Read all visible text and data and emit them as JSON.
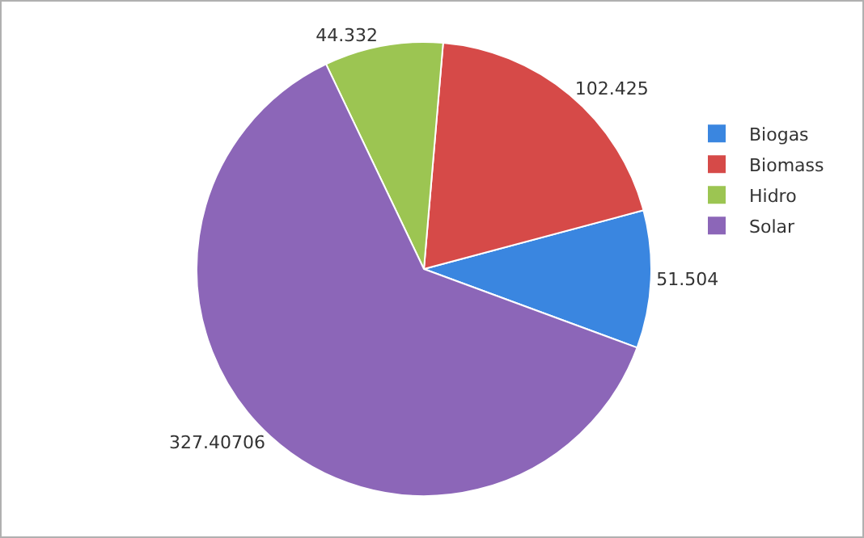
{
  "chart_data": {
    "type": "pie",
    "categories": [
      "Biogas",
      "Biomass",
      "Hidro",
      "Solar"
    ],
    "values": [
      51.504,
      102.425,
      44.332,
      327.40706
    ],
    "colors": [
      "#3a86e0",
      "#d64a48",
      "#9cc552",
      "#8c66b8"
    ],
    "data_labels": true,
    "legend": "right"
  }
}
